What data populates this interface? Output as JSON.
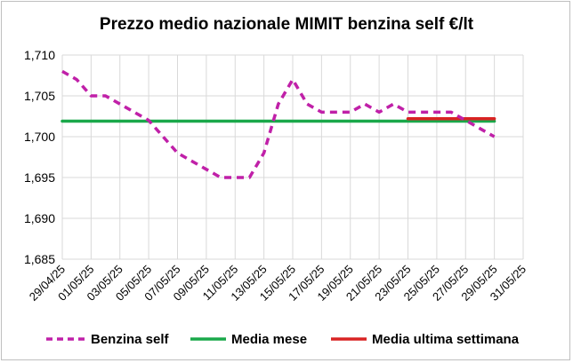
{
  "chart_data": {
    "type": "line",
    "title": "Prezzo medio nazionale MIMIT benzina self €/lt",
    "xlabel": "",
    "ylabel": "",
    "ylim": [
      1.685,
      1.71
    ],
    "yticks": [
      "1,685",
      "1,690",
      "1,695",
      "1,700",
      "1,705",
      "1,710"
    ],
    "yvalues": [
      1.685,
      1.69,
      1.695,
      1.7,
      1.705,
      1.71
    ],
    "xticks": [
      "29/04/25",
      "01/05/25",
      "03/05/25",
      "05/05/25",
      "07/05/25",
      "09/05/25",
      "11/05/25",
      "13/05/25",
      "15/05/25",
      "17/05/25",
      "19/05/25",
      "21/05/25",
      "23/05/25",
      "25/05/25",
      "27/05/25",
      "29/05/25",
      "31/05/25"
    ],
    "xrange": [
      "29/04/25",
      "31/05/25"
    ],
    "grid": true,
    "legend_position": "bottom",
    "series": [
      {
        "name": "Benzina self",
        "color": "#c020a8",
        "style": "dashed",
        "points": [
          [
            "29/04/25",
            1.708
          ],
          [
            "30/04/25",
            1.707
          ],
          [
            "01/05/25",
            1.705
          ],
          [
            "02/05/25",
            1.705
          ],
          [
            "03/05/25",
            1.704
          ],
          [
            "04/05/25",
            1.703
          ],
          [
            "05/05/25",
            1.702
          ],
          [
            "06/05/25",
            1.7
          ],
          [
            "07/05/25",
            1.698
          ],
          [
            "08/05/25",
            1.697
          ],
          [
            "09/05/25",
            1.696
          ],
          [
            "10/05/25",
            1.695
          ],
          [
            "11/05/25",
            1.695
          ],
          [
            "12/05/25",
            1.695
          ],
          [
            "13/05/25",
            1.698
          ],
          [
            "14/05/25",
            1.704
          ],
          [
            "15/05/25",
            1.707
          ],
          [
            "16/05/25",
            1.704
          ],
          [
            "17/05/25",
            1.703
          ],
          [
            "18/05/25",
            1.703
          ],
          [
            "19/05/25",
            1.703
          ],
          [
            "20/05/25",
            1.704
          ],
          [
            "21/05/25",
            1.703
          ],
          [
            "22/05/25",
            1.704
          ],
          [
            "23/05/25",
            1.703
          ],
          [
            "24/05/25",
            1.703
          ],
          [
            "25/05/25",
            1.703
          ],
          [
            "26/05/25",
            1.703
          ],
          [
            "27/05/25",
            1.702
          ],
          [
            "28/05/25",
            1.701
          ],
          [
            "29/05/25",
            1.7
          ]
        ]
      },
      {
        "name": "Media mese",
        "color": "#1aa84a",
        "style": "solid",
        "points": [
          [
            "29/04/25",
            1.7019
          ],
          [
            "29/05/25",
            1.7019
          ]
        ]
      },
      {
        "name": "Media ultima settimana",
        "color": "#d92323",
        "style": "solid",
        "points": [
          [
            "23/05/25",
            1.7022
          ],
          [
            "29/05/25",
            1.7022
          ]
        ]
      }
    ]
  }
}
